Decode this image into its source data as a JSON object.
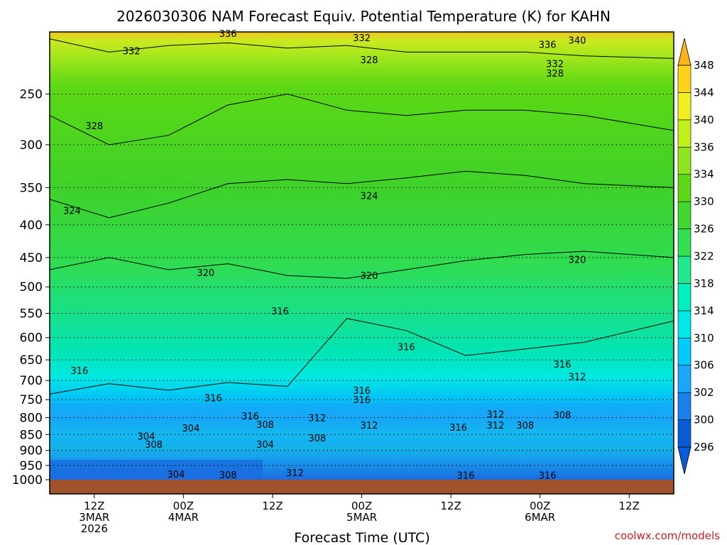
{
  "chart_data": {
    "type": "heatmap",
    "title": "2026030306 NAM Forecast Equiv. Potential Temperature (K) for KAHN",
    "xlabel": "Forecast Time (UTC)",
    "ylabel": "",
    "y_axis": {
      "scale": "log-pressure",
      "reversed": true,
      "ylim": [
        1000,
        200
      ],
      "ticks": [
        250,
        300,
        350,
        400,
        450,
        500,
        550,
        600,
        650,
        700,
        750,
        800,
        850,
        900,
        950,
        1000
      ]
    },
    "x_axis": {
      "xlim": [
        6,
        90
      ],
      "units": "forecast hour",
      "ticks": [
        {
          "value": 12,
          "lines": [
            "12Z",
            "3MAR",
            "2026"
          ]
        },
        {
          "value": 24,
          "lines": [
            "00Z",
            "4MAR"
          ]
        },
        {
          "value": 36,
          "lines": [
            "12Z"
          ]
        },
        {
          "value": 48,
          "lines": [
            "00Z",
            "5MAR"
          ]
        },
        {
          "value": 60,
          "lines": [
            "12Z"
          ]
        },
        {
          "value": 72,
          "lines": [
            "00Z",
            "6MAR"
          ]
        },
        {
          "value": 84,
          "lines": [
            "12Z"
          ]
        }
      ]
    },
    "grid": "dotted horizontal at pressure ticks",
    "colorbar": {
      "levels": [
        296,
        300,
        302,
        306,
        310,
        314,
        318,
        322,
        326,
        330,
        334,
        336,
        340,
        344,
        348
      ],
      "colors": [
        "#0a5bd8",
        "#1a80ee",
        "#19a6ff",
        "#00ccff",
        "#00e8e8",
        "#00f0c0",
        "#20e890",
        "#30e050",
        "#40d830",
        "#5cd814",
        "#8ee61a",
        "#bff01a",
        "#f0f020",
        "#ffd21a",
        "#ffb417"
      ]
    },
    "series": [
      {
        "name": "316",
        "x": [
          6,
          14,
          22,
          30,
          38,
          46,
          54,
          62,
          70,
          78,
          90
        ],
        "y": [
          735,
          708,
          725,
          705,
          715,
          560,
          585,
          640,
          625,
          610,
          565
        ]
      },
      {
        "name": "320",
        "x": [
          6,
          14,
          22,
          30,
          38,
          46,
          54,
          62,
          70,
          78,
          90
        ],
        "y": [
          470,
          450,
          470,
          460,
          480,
          485,
          470,
          455,
          445,
          440,
          450
        ]
      },
      {
        "name": "324",
        "x": [
          6,
          14,
          22,
          30,
          38,
          46,
          54,
          62,
          70,
          78,
          90
        ],
        "y": [
          365,
          390,
          370,
          345,
          340,
          345,
          338,
          330,
          335,
          345,
          350
        ]
      },
      {
        "name": "328",
        "x": [
          6,
          14,
          22,
          30,
          38,
          46,
          54,
          62,
          70,
          78,
          90
        ],
        "y": [
          270,
          300,
          290,
          260,
          250,
          265,
          270,
          265,
          265,
          270,
          285
        ]
      },
      {
        "name": "332",
        "x": [
          6,
          14,
          22,
          30,
          38,
          46,
          54,
          62,
          70,
          78,
          90
        ],
        "y": [
          205,
          215,
          210,
          208,
          212,
          210,
          215,
          215,
          215,
          218,
          220
        ]
      }
    ],
    "contour_labels": [
      {
        "text": "336",
        "x": 30,
        "y": 201
      },
      {
        "text": "332",
        "x": 17,
        "y": 214
      },
      {
        "text": "332",
        "x": 48,
        "y": 204
      },
      {
        "text": "328",
        "x": 49,
        "y": 221
      },
      {
        "text": "336",
        "x": 73,
        "y": 209
      },
      {
        "text": "340",
        "x": 77,
        "y": 206
      },
      {
        "text": "332",
        "x": 74,
        "y": 224
      },
      {
        "text": "328",
        "x": 74,
        "y": 232
      },
      {
        "text": "328",
        "x": 12,
        "y": 280
      },
      {
        "text": "324",
        "x": 49,
        "y": 360
      },
      {
        "text": "324",
        "x": 9,
        "y": 380
      },
      {
        "text": "320",
        "x": 27,
        "y": 475
      },
      {
        "text": "320",
        "x": 49,
        "y": 480
      },
      {
        "text": "320",
        "x": 77,
        "y": 453
      },
      {
        "text": "316",
        "x": 37,
        "y": 545
      },
      {
        "text": "316",
        "x": 54,
        "y": 620
      },
      {
        "text": "316",
        "x": 10,
        "y": 675
      },
      {
        "text": "316",
        "x": 75,
        "y": 660
      },
      {
        "text": "312",
        "x": 77,
        "y": 690
      },
      {
        "text": "316",
        "x": 48,
        "y": 725
      },
      {
        "text": "316",
        "x": 28,
        "y": 745
      },
      {
        "text": "316",
        "x": 48,
        "y": 750
      },
      {
        "text": "316",
        "x": 33,
        "y": 795
      },
      {
        "text": "312",
        "x": 42,
        "y": 800
      },
      {
        "text": "312",
        "x": 49,
        "y": 822
      },
      {
        "text": "312",
        "x": 66,
        "y": 790
      },
      {
        "text": "308",
        "x": 75,
        "y": 792
      },
      {
        "text": "308",
        "x": 35,
        "y": 820
      },
      {
        "text": "316",
        "x": 61,
        "y": 828
      },
      {
        "text": "312",
        "x": 66,
        "y": 822
      },
      {
        "text": "308",
        "x": 70,
        "y": 822
      },
      {
        "text": "304",
        "x": 25,
        "y": 830
      },
      {
        "text": "304",
        "x": 19,
        "y": 855
      },
      {
        "text": "308",
        "x": 42,
        "y": 860
      },
      {
        "text": "308",
        "x": 20,
        "y": 880
      },
      {
        "text": "304",
        "x": 35,
        "y": 880
      },
      {
        "text": "304",
        "x": 23,
        "y": 980
      },
      {
        "text": "308",
        "x": 30,
        "y": 982
      },
      {
        "text": "312",
        "x": 39,
        "y": 975
      },
      {
        "text": "316",
        "x": 62,
        "y": 983
      },
      {
        "text": "316",
        "x": 73,
        "y": 983
      }
    ]
  },
  "credit": "coolwx.com/models"
}
